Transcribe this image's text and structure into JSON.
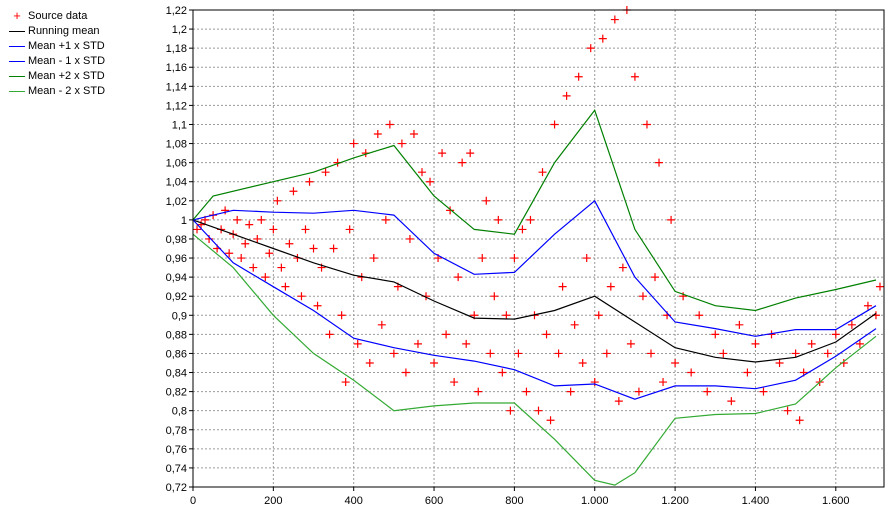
{
  "chart_data": {
    "type": "scatter",
    "title": "",
    "xlabel": "",
    "ylabel": "",
    "xlim": [
      0,
      1720
    ],
    "ylim": [
      0.72,
      1.22
    ],
    "grid": true,
    "legend_position": "left",
    "x_ticks": [
      0,
      200,
      400,
      600,
      800,
      1000,
      1200,
      1400,
      1600
    ],
    "x_tick_labels": [
      "0",
      "200",
      "400",
      "600",
      "800",
      "1.000",
      "1.200",
      "1.400",
      "1.600"
    ],
    "y_ticks": [
      0.72,
      0.74,
      0.76,
      0.78,
      0.8,
      0.82,
      0.84,
      0.86,
      0.88,
      0.9,
      0.92,
      0.94,
      0.96,
      0.98,
      1.0,
      1.02,
      1.04,
      1.06,
      1.08,
      1.1,
      1.12,
      1.14,
      1.16,
      1.18,
      1.2,
      1.22
    ],
    "y_tick_labels": [
      "0,72",
      "0,74",
      "0,76",
      "0,78",
      "0,8",
      "0,82",
      "0,84",
      "0,86",
      "0,88",
      "0,9",
      "0,92",
      "0,94",
      "0,96",
      "0,98",
      "1",
      "1,02",
      "1,04",
      "1,06",
      "1,08",
      "1,1",
      "1,12",
      "1,14",
      "1,16",
      "1,18",
      "1,2",
      "1,22"
    ],
    "series": [
      {
        "name": "Source data",
        "kind": "scatter",
        "marker": "plus",
        "color": "#ff0000",
        "points": [
          [
            10,
            0.99
          ],
          [
            20,
            0.995
          ],
          [
            30,
            1.0
          ],
          [
            40,
            0.98
          ],
          [
            50,
            1.005
          ],
          [
            60,
            0.97
          ],
          [
            70,
            0.99
          ],
          [
            80,
            1.01
          ],
          [
            90,
            0.965
          ],
          [
            100,
            0.985
          ],
          [
            110,
            1.0
          ],
          [
            120,
            0.96
          ],
          [
            130,
            0.975
          ],
          [
            140,
            0.995
          ],
          [
            150,
            0.95
          ],
          [
            160,
            0.98
          ],
          [
            170,
            1.0
          ],
          [
            180,
            0.94
          ],
          [
            190,
            0.965
          ],
          [
            200,
            0.99
          ],
          [
            210,
            1.02
          ],
          [
            220,
            0.95
          ],
          [
            230,
            0.93
          ],
          [
            240,
            0.975
          ],
          [
            250,
            1.03
          ],
          [
            260,
            0.96
          ],
          [
            270,
            0.92
          ],
          [
            280,
            0.99
          ],
          [
            290,
            1.04
          ],
          [
            300,
            0.97
          ],
          [
            310,
            0.91
          ],
          [
            320,
            0.95
          ],
          [
            330,
            1.05
          ],
          [
            340,
            0.88
          ],
          [
            350,
            0.97
          ],
          [
            360,
            1.06
          ],
          [
            370,
            0.9
          ],
          [
            380,
            0.83
          ],
          [
            390,
            0.99
          ],
          [
            400,
            1.08
          ],
          [
            410,
            0.87
          ],
          [
            420,
            0.94
          ],
          [
            430,
            1.07
          ],
          [
            440,
            0.85
          ],
          [
            450,
            0.96
          ],
          [
            460,
            1.09
          ],
          [
            470,
            0.89
          ],
          [
            480,
            1.0
          ],
          [
            490,
            1.1
          ],
          [
            500,
            0.86
          ],
          [
            510,
            0.93
          ],
          [
            520,
            1.08
          ],
          [
            530,
            0.84
          ],
          [
            540,
            0.98
          ],
          [
            550,
            1.09
          ],
          [
            560,
            0.87
          ],
          [
            570,
            1.05
          ],
          [
            580,
            0.92
          ],
          [
            590,
            1.04
          ],
          [
            600,
            0.85
          ],
          [
            610,
            0.96
          ],
          [
            620,
            1.07
          ],
          [
            630,
            0.88
          ],
          [
            640,
            1.01
          ],
          [
            650,
            0.83
          ],
          [
            660,
            0.94
          ],
          [
            670,
            1.06
          ],
          [
            680,
            0.87
          ],
          [
            690,
            1.07
          ],
          [
            700,
            0.9
          ],
          [
            710,
            0.82
          ],
          [
            720,
            0.96
          ],
          [
            730,
            1.02
          ],
          [
            740,
            0.86
          ],
          [
            750,
            0.92
          ],
          [
            760,
            1.0
          ],
          [
            770,
            0.84
          ],
          [
            780,
            0.9
          ],
          [
            790,
            0.8
          ],
          [
            800,
            0.96
          ],
          [
            810,
            0.86
          ],
          [
            820,
            0.99
          ],
          [
            830,
            0.82
          ],
          [
            840,
            1.0
          ],
          [
            850,
            0.9
          ],
          [
            860,
            0.8
          ],
          [
            870,
            1.05
          ],
          [
            880,
            0.88
          ],
          [
            890,
            0.79
          ],
          [
            900,
            1.1
          ],
          [
            910,
            0.86
          ],
          [
            920,
            0.93
          ],
          [
            930,
            1.13
          ],
          [
            940,
            0.82
          ],
          [
            950,
            0.89
          ],
          [
            960,
            1.15
          ],
          [
            970,
            0.85
          ],
          [
            980,
            0.96
          ],
          [
            990,
            1.18
          ],
          [
            1000,
            0.83
          ],
          [
            1010,
            0.9
          ],
          [
            1020,
            1.19
          ],
          [
            1030,
            0.86
          ],
          [
            1040,
            0.93
          ],
          [
            1050,
            1.21
          ],
          [
            1060,
            0.81
          ],
          [
            1070,
            0.95
          ],
          [
            1080,
            1.22
          ],
          [
            1090,
            0.87
          ],
          [
            1100,
            1.15
          ],
          [
            1110,
            0.82
          ],
          [
            1120,
            0.92
          ],
          [
            1130,
            1.1
          ],
          [
            1140,
            0.86
          ],
          [
            1150,
            0.94
          ],
          [
            1160,
            1.06
          ],
          [
            1170,
            0.83
          ],
          [
            1180,
            0.9
          ],
          [
            1190,
            1.0
          ],
          [
            1200,
            0.85
          ],
          [
            1220,
            0.92
          ],
          [
            1240,
            0.84
          ],
          [
            1260,
            0.9
          ],
          [
            1280,
            0.82
          ],
          [
            1300,
            0.88
          ],
          [
            1320,
            0.86
          ],
          [
            1340,
            0.81
          ],
          [
            1360,
            0.89
          ],
          [
            1380,
            0.84
          ],
          [
            1400,
            0.87
          ],
          [
            1420,
            0.82
          ],
          [
            1440,
            0.88
          ],
          [
            1460,
            0.85
          ],
          [
            1480,
            0.8
          ],
          [
            1500,
            0.86
          ],
          [
            1510,
            0.79
          ],
          [
            1520,
            0.84
          ],
          [
            1540,
            0.87
          ],
          [
            1560,
            0.83
          ],
          [
            1580,
            0.86
          ],
          [
            1600,
            0.88
          ],
          [
            1620,
            0.85
          ],
          [
            1640,
            0.89
          ],
          [
            1660,
            0.87
          ],
          [
            1680,
            0.91
          ],
          [
            1700,
            0.9
          ],
          [
            1710,
            0.93
          ]
        ]
      },
      {
        "name": "Running mean",
        "kind": "line",
        "color": "#000000",
        "points": [
          [
            0,
            1.0
          ],
          [
            100,
            0.985
          ],
          [
            200,
            0.97
          ],
          [
            300,
            0.955
          ],
          [
            400,
            0.942
          ],
          [
            500,
            0.935
          ],
          [
            600,
            0.915
          ],
          [
            700,
            0.897
          ],
          [
            800,
            0.896
          ],
          [
            900,
            0.905
          ],
          [
            1000,
            0.92
          ],
          [
            1100,
            0.893
          ],
          [
            1200,
            0.866
          ],
          [
            1300,
            0.856
          ],
          [
            1400,
            0.851
          ],
          [
            1500,
            0.856
          ],
          [
            1600,
            0.872
          ],
          [
            1700,
            0.902
          ]
        ]
      },
      {
        "name": "Mean +1 x STD",
        "kind": "line",
        "color": "#0000ff",
        "points": [
          [
            0,
            1.0
          ],
          [
            100,
            1.01
          ],
          [
            200,
            1.008
          ],
          [
            300,
            1.007
          ],
          [
            400,
            1.01
          ],
          [
            500,
            1.005
          ],
          [
            600,
            0.965
          ],
          [
            700,
            0.943
          ],
          [
            800,
            0.945
          ],
          [
            900,
            0.985
          ],
          [
            1000,
            1.02
          ],
          [
            1100,
            0.94
          ],
          [
            1200,
            0.893
          ],
          [
            1300,
            0.886
          ],
          [
            1400,
            0.878
          ],
          [
            1500,
            0.885
          ],
          [
            1600,
            0.885
          ],
          [
            1700,
            0.91
          ]
        ]
      },
      {
        "name": "Mean - 1 x STD",
        "kind": "line",
        "color": "#0000ff",
        "points": [
          [
            0,
            1.0
          ],
          [
            100,
            0.955
          ],
          [
            200,
            0.93
          ],
          [
            300,
            0.905
          ],
          [
            400,
            0.876
          ],
          [
            500,
            0.866
          ],
          [
            600,
            0.858
          ],
          [
            700,
            0.852
          ],
          [
            800,
            0.843
          ],
          [
            900,
            0.826
          ],
          [
            1000,
            0.828
          ],
          [
            1100,
            0.812
          ],
          [
            1200,
            0.826
          ],
          [
            1300,
            0.826
          ],
          [
            1400,
            0.823
          ],
          [
            1500,
            0.832
          ],
          [
            1600,
            0.857
          ],
          [
            1700,
            0.886
          ]
        ]
      },
      {
        "name": "Mean +2 x STD",
        "kind": "line",
        "color": "#008000",
        "points": [
          [
            0,
            1.0
          ],
          [
            50,
            1.025
          ],
          [
            200,
            1.04
          ],
          [
            300,
            1.05
          ],
          [
            400,
            1.065
          ],
          [
            500,
            1.078
          ],
          [
            600,
            1.025
          ],
          [
            700,
            0.99
          ],
          [
            800,
            0.985
          ],
          [
            900,
            1.06
          ],
          [
            1000,
            1.115
          ],
          [
            1100,
            0.99
          ],
          [
            1200,
            0.925
          ],
          [
            1300,
            0.91
          ],
          [
            1400,
            0.905
          ],
          [
            1500,
            0.918
          ],
          [
            1600,
            0.927
          ],
          [
            1700,
            0.937
          ]
        ]
      },
      {
        "name": "Mean - 2 x STD",
        "kind": "line",
        "color": "#33aa33",
        "points": [
          [
            0,
            0.985
          ],
          [
            100,
            0.95
          ],
          [
            200,
            0.9
          ],
          [
            300,
            0.86
          ],
          [
            400,
            0.832
          ],
          [
            500,
            0.8
          ],
          [
            600,
            0.805
          ],
          [
            700,
            0.808
          ],
          [
            800,
            0.808
          ],
          [
            900,
            0.77
          ],
          [
            1000,
            0.727
          ],
          [
            1050,
            0.722
          ],
          [
            1100,
            0.735
          ],
          [
            1200,
            0.792
          ],
          [
            1300,
            0.796
          ],
          [
            1400,
            0.797
          ],
          [
            1500,
            0.807
          ],
          [
            1600,
            0.845
          ],
          [
            1700,
            0.878
          ]
        ]
      }
    ]
  }
}
